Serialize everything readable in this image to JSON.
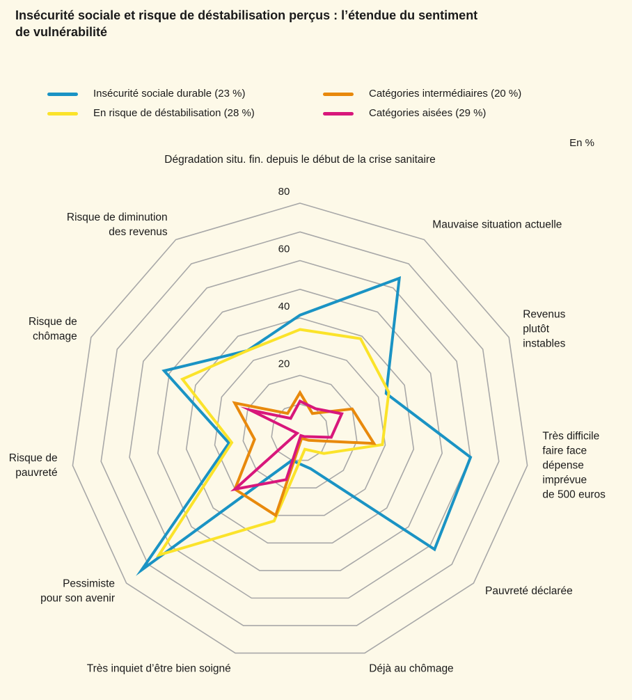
{
  "title_lines": [
    "Insécurité sociale et risque de déstabilisation perçus : l’étendue du sentiment",
    "de vulnérabilité"
  ],
  "unit_label": "En %",
  "colors": {
    "background": "#fdf9e8",
    "grid": "#a8a8a8",
    "series": [
      "#1a93c4",
      "#fbe32a",
      "#e8890c",
      "#d8177b"
    ]
  },
  "chart_data": {
    "type": "radar",
    "title": "Insécurité sociale et risque de déstabilisation perçus : l’étendue du sentiment de vulnérabilité",
    "unit": "En %",
    "r_range": [
      0,
      80
    ],
    "r_ticks": [
      20,
      40,
      60,
      80
    ],
    "r_grid_step": 10,
    "grid": true,
    "legend_position": "top",
    "axes": [
      [
        "Dégradation situ. fin. depuis le début de la crise sanitaire"
      ],
      [
        "Mauvaise situation actuelle"
      ],
      [
        "Revenus",
        "plutôt",
        "instables"
      ],
      [
        "Très difficile",
        "faire face",
        "dépense",
        "imprévue",
        "de 500 euros"
      ],
      [
        "Pauvreté déclarée"
      ],
      [
        "Déjà au chômage"
      ],
      [
        "Très inquiet d’être bien soigné"
      ],
      [
        "Pessimiste",
        "pour son avenir"
      ],
      [
        "Risque de",
        "pauvreté"
      ],
      [
        "Risque de",
        "chômage"
      ],
      [
        "Risque de diminution",
        "des revenus"
      ]
    ],
    "series": [
      {
        "name": "Insécurité sociale durable (23 %)",
        "values": [
          41,
          64,
          33,
          60,
          62,
          13,
          10,
          73,
          25,
          52,
          34
        ]
      },
      {
        "name": "En risque de déstabilisation (28 %)",
        "values": [
          36,
          39,
          34,
          29,
          11,
          6,
          32,
          65,
          24,
          45,
          34
        ]
      },
      {
        "name": "Catégories intermédiaires (20 %)",
        "values": [
          14,
          8,
          20,
          26,
          4,
          2,
          30,
          30,
          16,
          25,
          8
        ]
      },
      {
        "name": "Catégories aisées (29 %)",
        "values": [
          11,
          10,
          16,
          11,
          2,
          1,
          17,
          30,
          1,
          19,
          6
        ]
      }
    ]
  }
}
